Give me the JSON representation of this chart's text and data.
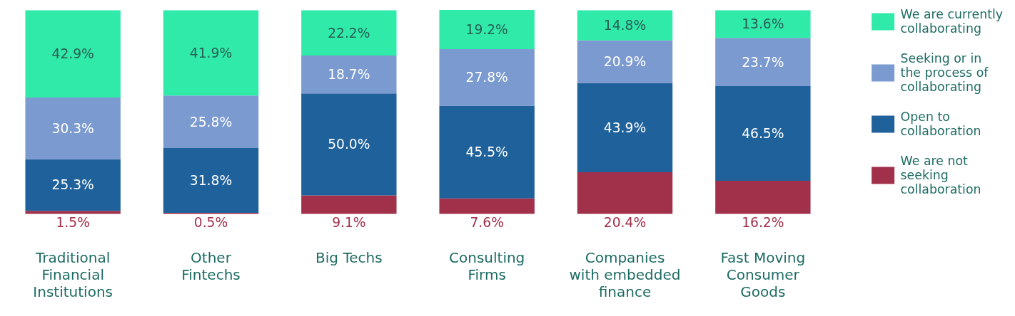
{
  "chart_data": {
    "type": "bar",
    "stacked": true,
    "data_labels": true,
    "legend": "right",
    "grid": false,
    "tick_labels": "x",
    "categories": [
      "Traditional Financial Institutions",
      "Other Fintechs",
      "Big Techs",
      "Consulting Firms",
      "Companies with embedded finance",
      "Fast Moving Consumer Goods"
    ],
    "series": [
      {
        "name": "We are not seeking collaboration",
        "color": "#a1304b",
        "values": [
          1.5,
          0.5,
          9.1,
          7.6,
          20.4,
          16.2
        ],
        "value_labels": [
          "1.5%",
          "0.5%",
          "9.1%",
          "7.6%",
          "20.4%",
          "16.2%"
        ]
      },
      {
        "name": "Open to collaboration",
        "color": "#1f619b",
        "values": [
          25.3,
          31.8,
          50.0,
          45.5,
          43.9,
          46.5
        ],
        "value_labels": [
          "25.3%",
          "31.8%",
          "50.0%",
          "45.5%",
          "43.9%",
          "46.5%"
        ]
      },
      {
        "name": "Seeking or in the process of collaborating",
        "color": "#7b9acf",
        "values": [
          30.3,
          25.8,
          18.7,
          27.8,
          20.9,
          23.7
        ],
        "value_labels": [
          "30.3%",
          "25.8%",
          "18.7%",
          "27.8%",
          "20.9%",
          "23.7%"
        ]
      },
      {
        "name": "We are currently collaborating",
        "color": "#2feaa8",
        "values": [
          42.9,
          41.9,
          22.2,
          19.2,
          14.8,
          13.6
        ],
        "value_labels": [
          "42.9%",
          "41.9%",
          "22.2%",
          "19.2%",
          "14.8%",
          "13.6%"
        ]
      }
    ]
  }
}
